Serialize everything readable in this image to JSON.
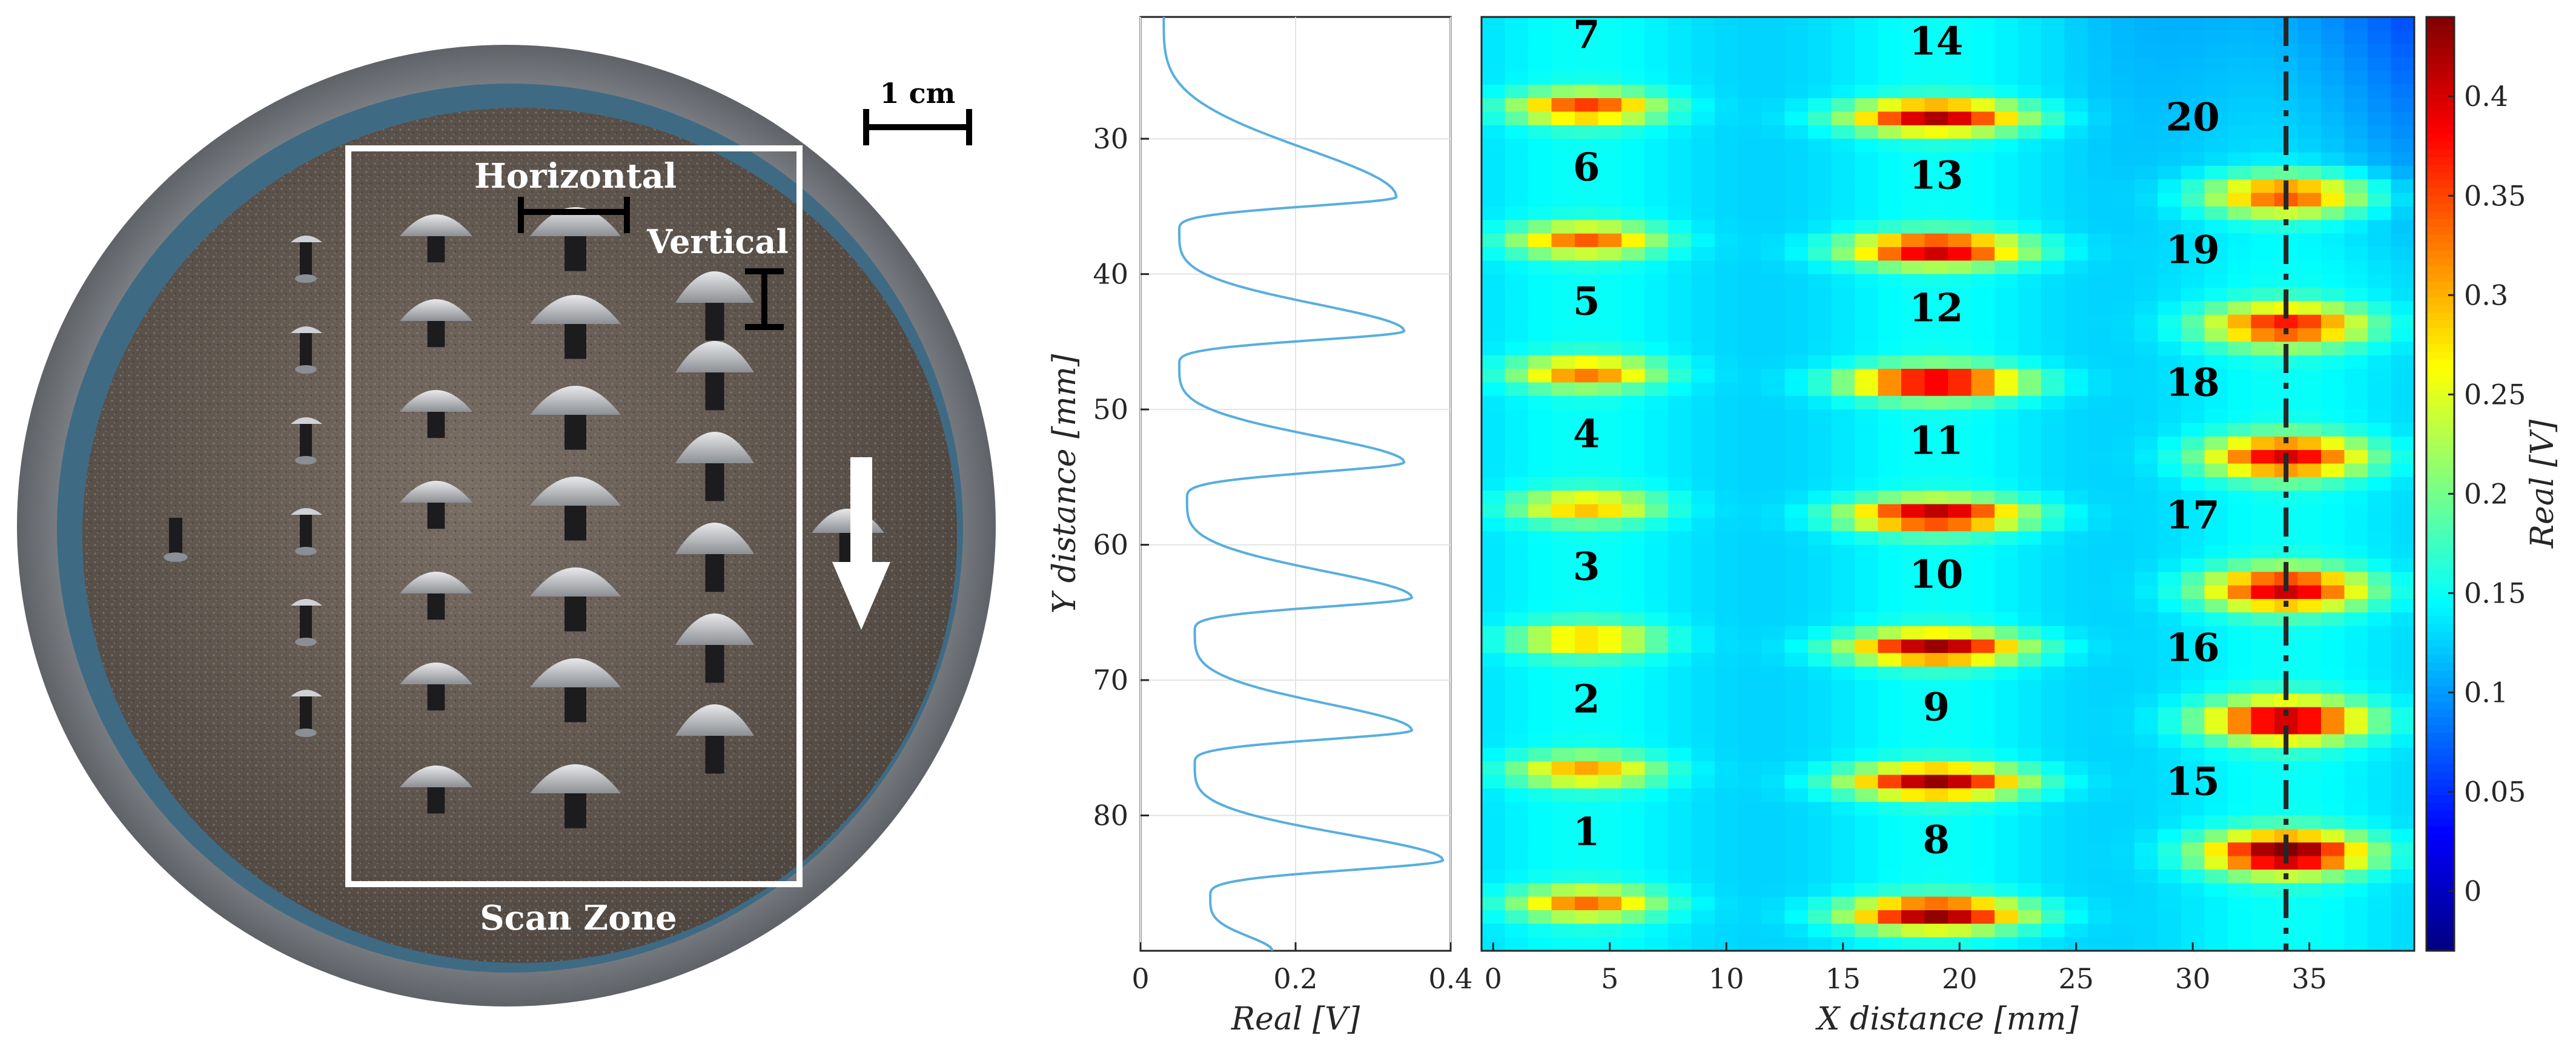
{
  "photo": {
    "scale_bar_label": "1 cm",
    "horizontal_label": "Horizontal",
    "vertical_label": "Vertical",
    "scan_zone_label": "Scan Zone",
    "colors": {
      "dish_rim": "#8f9399",
      "plate": "#6f655c",
      "inner_ring": "#4a6b80",
      "annotation": "#ffffff",
      "scale_bar": "#000000"
    }
  },
  "chart_data": [
    {
      "type": "line",
      "title": "",
      "xlabel": "Real [V]",
      "ylabel": "Y distance [mm]",
      "xlim": [
        0,
        0.4
      ],
      "ylim": [
        90,
        21
      ],
      "x_ticks": [
        "0",
        "0.2",
        "0.4"
      ],
      "y_ticks": [
        "30",
        "40",
        "50",
        "60",
        "70",
        "80"
      ],
      "grid": true,
      "line_color": "#58aedf",
      "peaks_y": [
        34.3,
        44.2,
        53.9,
        63.9,
        73.7,
        83.3
      ],
      "peak_values": [
        0.33,
        0.34,
        0.34,
        0.35,
        0.35,
        0.39
      ],
      "troughs_y": [
        36.8,
        46.7,
        56.6,
        66.4,
        76.2,
        86.0
      ],
      "trough_values": [
        0.05,
        0.05,
        0.06,
        0.07,
        0.07,
        0.09
      ],
      "start": {
        "y": 21,
        "value": 0.03
      },
      "end": {
        "y": 90,
        "value": 0.17
      }
    },
    {
      "type": "heatmap",
      "title": "",
      "xlabel": "X distance [mm]",
      "ylabel": "",
      "xlim": [
        -0.5,
        39.5
      ],
      "ylim": [
        90,
        21
      ],
      "x_ticks": [
        "0",
        "5",
        "10",
        "15",
        "20",
        "25",
        "30",
        "35"
      ],
      "colorbar": {
        "label": "Real [V]",
        "ticks": [
          "0",
          "0.05",
          "0.1",
          "0.15",
          "0.2",
          "0.25",
          "0.3",
          "0.35",
          "0.4"
        ],
        "range": [
          -0.03,
          0.44
        ],
        "colormap": "jet"
      },
      "background_level": 0.12,
      "spots": [
        {
          "id": "1",
          "x": 4,
          "y": 86.5,
          "peak": 0.3
        },
        {
          "id": "2",
          "x": 4,
          "y": 76.7,
          "peak": 0.28
        },
        {
          "id": "3",
          "x": 4,
          "y": 67.0,
          "peak": 0.27
        },
        {
          "id": "4",
          "x": 4,
          "y": 57.2,
          "peak": 0.27
        },
        {
          "id": "5",
          "x": 4,
          "y": 47.3,
          "peak": 0.3
        },
        {
          "id": "6",
          "x": 4,
          "y": 37.5,
          "peak": 0.31
        },
        {
          "id": "7",
          "x": 4,
          "y": 27.7,
          "peak": 0.33
        },
        {
          "id": "8",
          "x": 19,
          "y": 87.3,
          "peak": 0.41
        },
        {
          "id": "9",
          "x": 19,
          "y": 77.5,
          "peak": 0.4
        },
        {
          "id": "10",
          "x": 19,
          "y": 67.6,
          "peak": 0.4
        },
        {
          "id": "11",
          "x": 19,
          "y": 57.8,
          "peak": 0.4
        },
        {
          "id": "12",
          "x": 19,
          "y": 48.0,
          "peak": 0.4
        },
        {
          "id": "13",
          "x": 19,
          "y": 38.2,
          "peak": 0.39
        },
        {
          "id": "14",
          "x": 19,
          "y": 28.4,
          "peak": 0.39
        },
        {
          "id": "15",
          "x": 34,
          "y": 82.8,
          "peak": 0.43
        },
        {
          "id": "16",
          "x": 34,
          "y": 73.0,
          "peak": 0.4
        },
        {
          "id": "17",
          "x": 34,
          "y": 63.3,
          "peak": 0.38
        },
        {
          "id": "18",
          "x": 34,
          "y": 53.5,
          "peak": 0.37
        },
        {
          "id": "19",
          "x": 34,
          "y": 43.8,
          "peak": 0.35
        },
        {
          "id": "20",
          "x": 34,
          "y": 34.2,
          "peak": 0.33
        }
      ],
      "label_positions": [
        {
          "id": "1",
          "x": 4,
          "y": 81.2
        },
        {
          "id": "2",
          "x": 4,
          "y": 71.4
        },
        {
          "id": "3",
          "x": 4,
          "y": 61.6
        },
        {
          "id": "4",
          "x": 4,
          "y": 51.8
        },
        {
          "id": "5",
          "x": 4,
          "y": 42.0
        },
        {
          "id": "6",
          "x": 4,
          "y": 32.1
        },
        {
          "id": "7",
          "x": 4,
          "y": 22.3
        },
        {
          "id": "8",
          "x": 19,
          "y": 81.8
        },
        {
          "id": "9",
          "x": 19,
          "y": 72.0
        },
        {
          "id": "10",
          "x": 19,
          "y": 62.2
        },
        {
          "id": "11",
          "x": 19,
          "y": 52.3
        },
        {
          "id": "12",
          "x": 19,
          "y": 42.5
        },
        {
          "id": "13",
          "x": 19,
          "y": 32.7
        },
        {
          "id": "14",
          "x": 19,
          "y": 22.8
        },
        {
          "id": "15",
          "x": 30,
          "y": 77.5
        },
        {
          "id": "16",
          "x": 30,
          "y": 67.6
        },
        {
          "id": "17",
          "x": 30,
          "y": 57.8
        },
        {
          "id": "18",
          "x": 30,
          "y": 48.0
        },
        {
          "id": "19",
          "x": 30,
          "y": 38.2
        },
        {
          "id": "20",
          "x": 30,
          "y": 28.4
        }
      ],
      "dashed_line_x": 34
    }
  ]
}
